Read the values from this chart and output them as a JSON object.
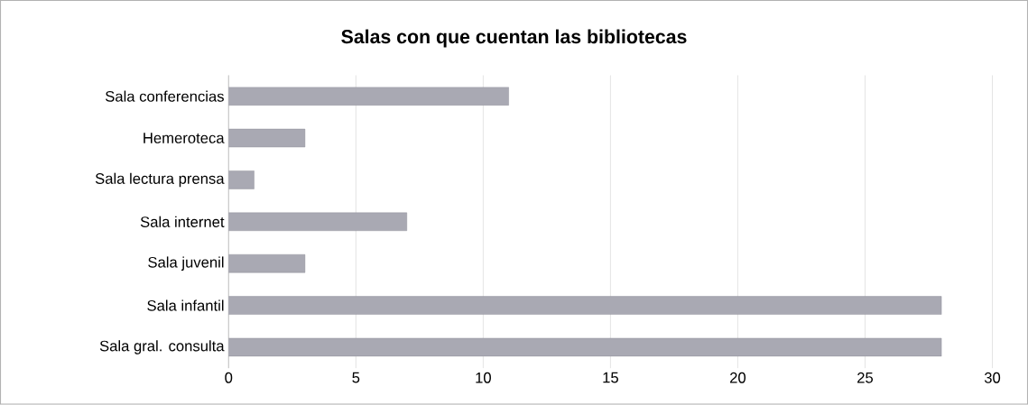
{
  "chart_data": {
    "type": "bar",
    "orientation": "horizontal",
    "title": "Salas con que cuentan las bibliotecas",
    "categories": [
      "Sala conferencias",
      "Hemeroteca",
      "Sala lectura prensa",
      "Sala internet",
      "Sala juvenil",
      "Sala infantil",
      "Sala gral. consulta"
    ],
    "values": [
      11,
      3,
      1,
      7,
      3,
      28,
      28
    ],
    "color": "#a9a9b3",
    "xlim": [
      0,
      30
    ],
    "xticks": [
      0,
      5,
      10,
      15,
      20,
      25,
      30
    ],
    "grid": "x"
  }
}
